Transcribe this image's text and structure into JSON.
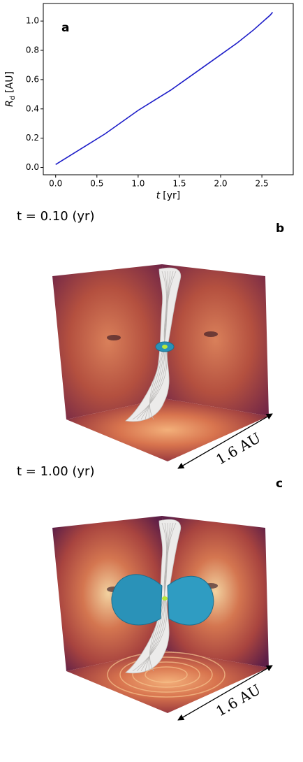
{
  "chart_data": {
    "type": "line",
    "panel_letter": "a",
    "x": [
      0,
      0.2,
      0.4,
      0.6,
      0.8,
      1.0,
      1.2,
      1.4,
      1.6,
      1.8,
      2.0,
      2.2,
      2.4,
      2.6,
      2.63
    ],
    "values": [
      0.02,
      0.09,
      0.16,
      0.23,
      0.31,
      0.39,
      0.46,
      0.53,
      0.61,
      0.69,
      0.77,
      0.85,
      0.94,
      1.04,
      1.06
    ],
    "color": "#1c1cc8",
    "xlabel": {
      "var": "t",
      "unit": "[yr]"
    },
    "ylabel": {
      "var": "R",
      "sub": "d",
      "unit": "[AU]"
    },
    "xlim": [
      -0.15,
      2.88
    ],
    "ylim": [
      -0.05,
      1.12
    ],
    "xticks": [
      {
        "value": 0,
        "label": "0.0"
      },
      {
        "value": 0.5,
        "label": "0.5"
      },
      {
        "value": 1,
        "label": "1.0"
      },
      {
        "value": 1.5,
        "label": "1.5"
      },
      {
        "value": 2,
        "label": "2.0"
      },
      {
        "value": 2.5,
        "label": "2.5"
      }
    ],
    "yticks": [
      {
        "value": 0,
        "label": "0.0"
      },
      {
        "value": 0.2,
        "label": "0.2"
      },
      {
        "value": 0.4,
        "label": "0.4"
      },
      {
        "value": 0.6,
        "label": "0.6"
      },
      {
        "value": 0.8,
        "label": "0.8"
      },
      {
        "value": 1,
        "label": "1.0"
      }
    ]
  },
  "panels": [
    {
      "time_label": "t = 0.10 (yr)",
      "letter": "b",
      "scale": "1.6 AU"
    },
    {
      "time_label": "t = 1.00 (yr)",
      "letter": "c",
      "scale": "1.6 AU"
    }
  ]
}
